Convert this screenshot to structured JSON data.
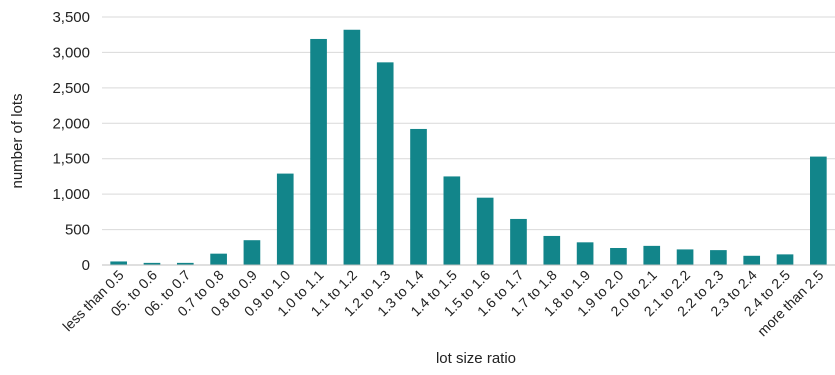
{
  "chart_data": {
    "type": "bar",
    "title": "",
    "xlabel": "lot size ratio",
    "ylabel": "number of lots",
    "ylim": [
      0,
      3500
    ],
    "yticks": [
      0,
      500,
      1000,
      1500,
      2000,
      2500,
      3000,
      3500
    ],
    "ytick_labels": [
      "0",
      "500",
      "1,000",
      "1,500",
      "2,000",
      "2,500",
      "3,000",
      "3,500"
    ],
    "grid": true,
    "legend": "none",
    "bar_color": "#12858a",
    "categories": [
      "less than 0.5",
      "05. to 0.6",
      "06. to 0.7",
      "0.7 to 0.8",
      "0.8 to 0.9",
      "0.9 to 1.0",
      "1.0 to 1.1",
      "1.1 to 1.2",
      "1.2 to 1.3",
      "1.3 to 1.4",
      "1.4 to 1.5",
      "1.5 to 1.6",
      "1.6 to 1.7",
      "1.7 to 1.8",
      "1.8 to 1.9",
      "1.9 to 2.0",
      "2.0 to 2.1",
      "2.1 to 2.2",
      "2.2 to 2.3",
      "2.3 to 2.4",
      "2.4 to 2.5",
      "more than 2.5"
    ],
    "values": [
      50,
      30,
      30,
      160,
      350,
      1290,
      3190,
      3320,
      2860,
      1920,
      1250,
      950,
      650,
      410,
      320,
      240,
      270,
      220,
      210,
      130,
      150,
      1530
    ]
  }
}
